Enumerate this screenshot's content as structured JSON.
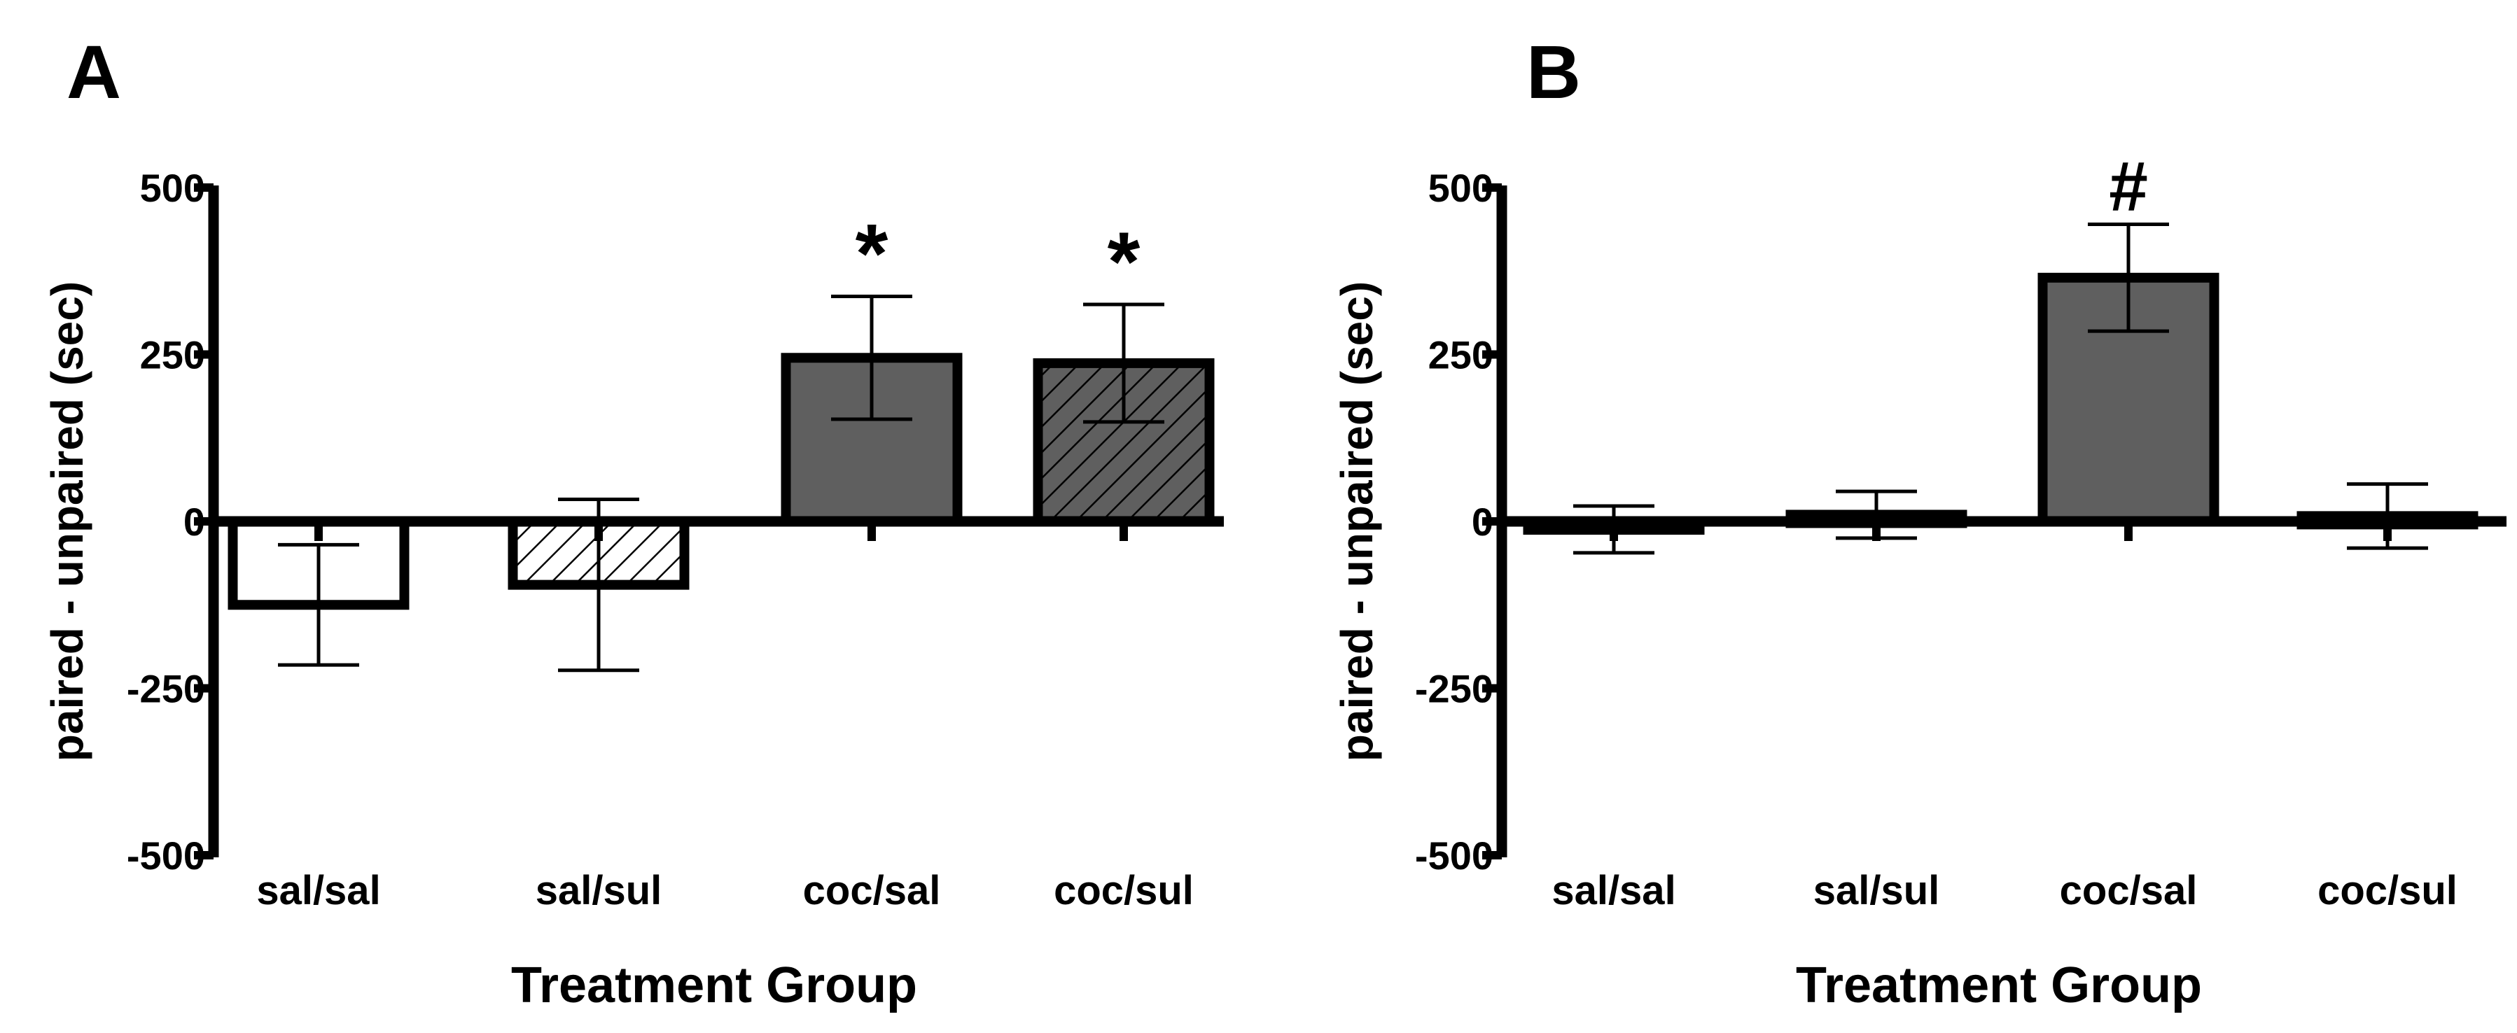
{
  "figure": {
    "panels": [
      "A",
      "B"
    ]
  },
  "colors": {
    "bar_outline": "#000000",
    "bar_fill_dark": "#5f5f5f",
    "bar_fill_white": "#ffffff",
    "hatch": "#000000"
  },
  "chart_data": [
    {
      "type": "bar",
      "panel_label": "A",
      "title": "",
      "xlabel": "Treatment Group",
      "ylabel": "paired - unpaired (sec)",
      "ylim": [
        -500,
        500
      ],
      "yticks": [
        500,
        250,
        0,
        -250,
        -500
      ],
      "ytick_labels": [
        "500",
        "250",
        "0",
        "-250",
        "-500"
      ],
      "categories": [
        "sal/sal",
        "sal/sul",
        "coc/sal",
        "coc/sul"
      ],
      "values": [
        -125,
        -95,
        245,
        237
      ],
      "errors": [
        90,
        128,
        92,
        88
      ],
      "fills": [
        "white",
        "hatch-white",
        "dark",
        "hatch-dark"
      ],
      "annotations": [
        "",
        "",
        "*",
        "*"
      ]
    },
    {
      "type": "bar",
      "panel_label": "B",
      "title": "",
      "xlabel": "Treatment Group",
      "ylabel": "paired - unpaired (sec)",
      "ylim": [
        -500,
        500
      ],
      "yticks": [
        500,
        250,
        0,
        -250,
        -500
      ],
      "ytick_labels": [
        "500",
        "250",
        "0",
        "-250",
        "-500"
      ],
      "categories": [
        "sal/sal",
        "sal/sul",
        "coc/sal",
        "coc/sul"
      ],
      "values": [
        -12,
        10,
        365,
        8
      ],
      "errors": [
        35,
        35,
        80,
        48
      ],
      "fills": [
        "dark",
        "dark",
        "dark",
        "dark"
      ],
      "annotations": [
        "",
        "",
        "#",
        ""
      ]
    }
  ]
}
